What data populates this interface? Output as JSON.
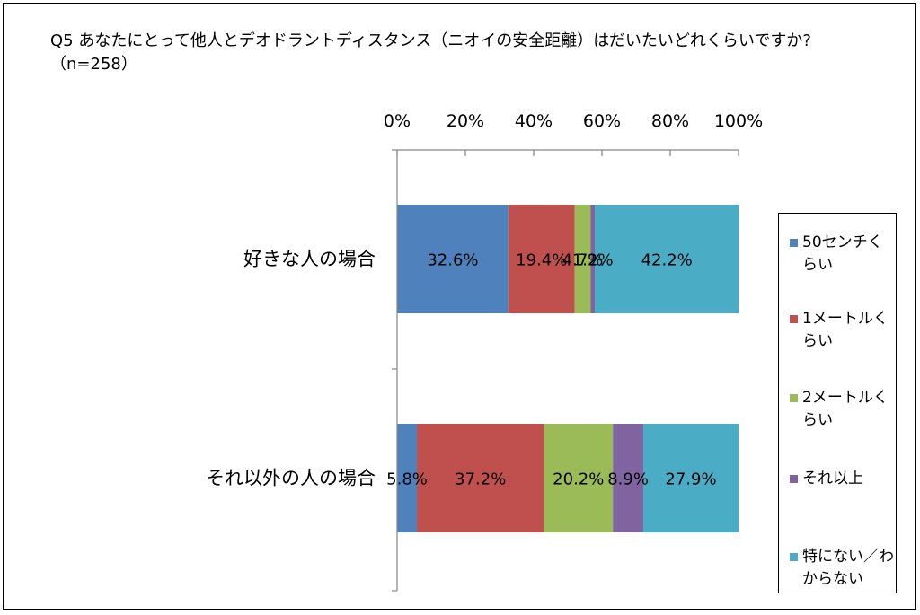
{
  "title": "Q5 あなたにとって他人とデオドラントディスタンス（ニオイの安全距離）はだいたいどれくらいですか?（n=258）",
  "chart_data": {
    "type": "bar",
    "orientation": "horizontal",
    "stacked": "percent",
    "title": "Q5 あなたにとって他人とデオドラントディスタンス（ニオイの安全距離）はだいたいどれくらいですか?（n=258）",
    "categories": [
      "好きな人の場合",
      "それ以外の人の場合"
    ],
    "xlim": [
      0,
      100
    ],
    "x_ticks": [
      "0%",
      "20%",
      "40%",
      "60%",
      "80%",
      "100%"
    ],
    "x_axis_position": "top",
    "grid": false,
    "legend_position": "right",
    "series": [
      {
        "name": "50センチくらい",
        "color": "#4F81BD",
        "values": [
          32.6,
          5.8
        ],
        "labels": [
          "32.6%",
          "5.8%"
        ]
      },
      {
        "name": "1メートルくらい",
        "color": "#C0504D",
        "values": [
          19.4,
          37.2
        ],
        "labels": [
          "19.4%",
          "37.2%"
        ]
      },
      {
        "name": "2メートルくらい",
        "color": "#9BBB59",
        "values": [
          4.7,
          20.2
        ],
        "labels": [
          "4.7%",
          "20.2%"
        ]
      },
      {
        "name": "それ以上",
        "color": "#8064A2",
        "values": [
          1.2,
          8.9
        ],
        "labels": [
          "1.2%",
          "8.9%"
        ]
      },
      {
        "name": "特にない／わからない",
        "color": "#4BACC6",
        "values": [
          42.2,
          27.9
        ],
        "labels": [
          "42.2%",
          "27.9%"
        ]
      }
    ]
  }
}
